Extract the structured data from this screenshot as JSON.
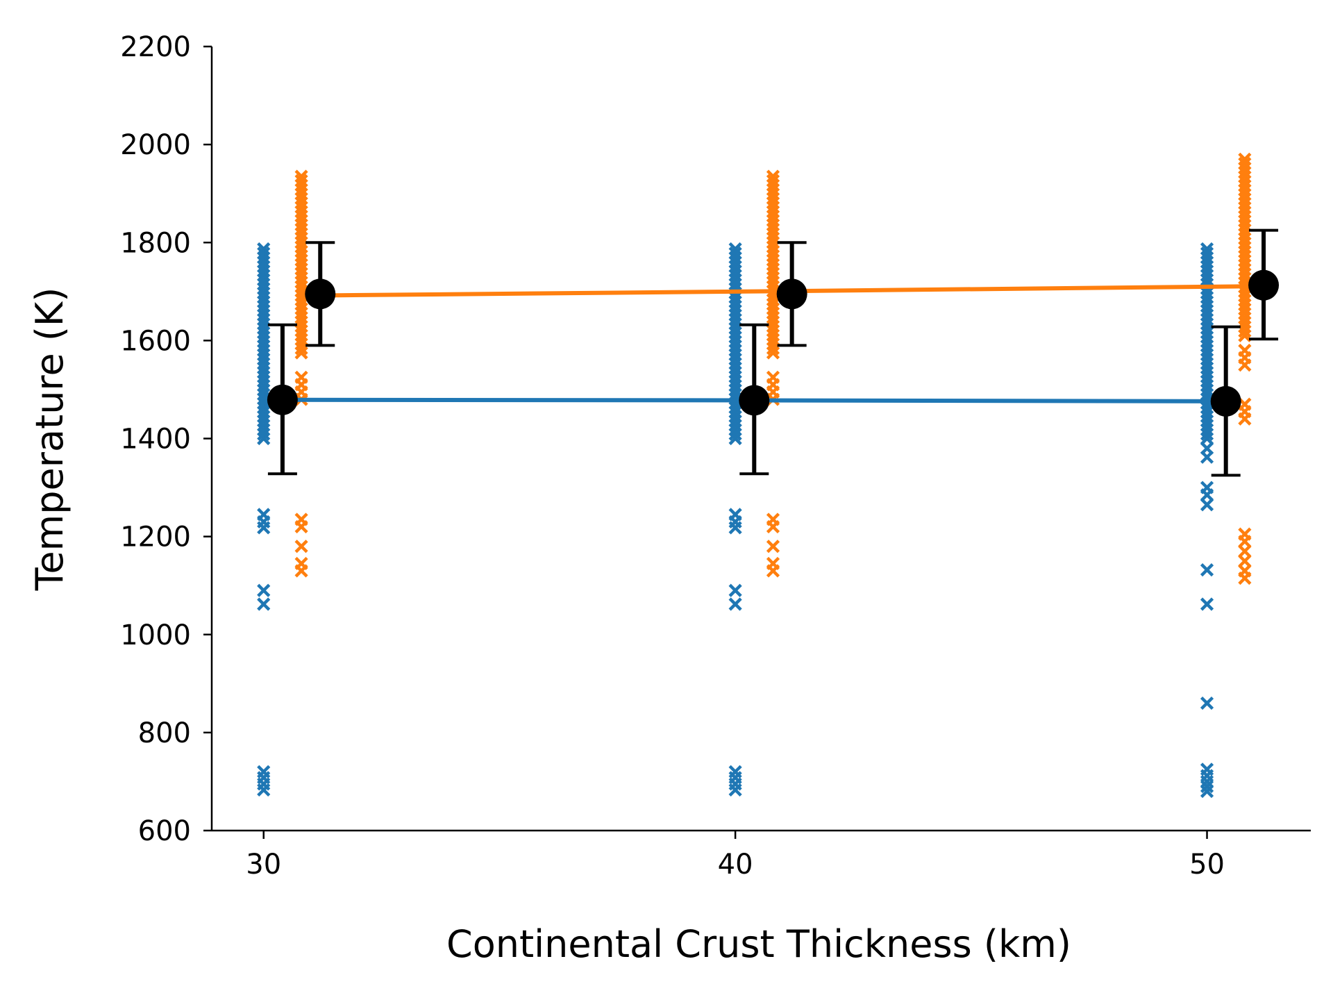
{
  "chart_data": {
    "type": "scatter",
    "title": "",
    "xlabel": "Continental Crust Thickness (km)",
    "ylabel": "Temperature (K)",
    "xlim": [
      28.9,
      52.2
    ],
    "ylim": [
      600,
      2200
    ],
    "x_ticks": [
      "30",
      "40",
      "50"
    ],
    "y_ticks": [
      "600",
      "800",
      "1000",
      "1200",
      "1400",
      "1600",
      "1800",
      "2000",
      "2200"
    ],
    "grid": false,
    "legend": "none",
    "colors": {
      "blue": "#1f77b4",
      "orange": "#ff7f0e",
      "mean": "#000000"
    },
    "series": [
      {
        "color": "#1f77b4",
        "x_offset": 0,
        "mean_x_offset": 0.4,
        "trend": [
          [
            30.4,
            1479
          ],
          [
            40.4,
            1478
          ],
          [
            50.4,
            1476
          ]
        ],
        "groups": [
          {
            "x": 30,
            "mean": 1479,
            "err_low": 1328,
            "err_high": 1632,
            "dense_range": [
              1400,
              1790
            ],
            "outliers": [
              1245,
              1230,
              1218,
              1090,
              1062,
              720,
              708,
              695,
              683
            ]
          },
          {
            "x": 40,
            "mean": 1478,
            "err_low": 1328,
            "err_high": 1632,
            "dense_range": [
              1400,
              1790
            ],
            "outliers": [
              1245,
              1230,
              1218,
              1090,
              1062,
              720,
              708,
              695,
              683
            ]
          },
          {
            "x": 50,
            "mean": 1476,
            "err_low": 1325,
            "err_high": 1628,
            "dense_range": [
              1400,
              1795
            ],
            "outliers": [
              1380,
              1362,
              1300,
              1285,
              1265,
              1132,
              1062,
              860,
              725,
              712,
              700,
              690,
              680
            ]
          }
        ]
      },
      {
        "color": "#ff7f0e",
        "x_offset": 0.8,
        "mean_x_offset": 1.2,
        "trend": [
          [
            31.2,
            1692
          ],
          [
            41.2,
            1701
          ],
          [
            51.2,
            1711
          ]
        ],
        "groups": [
          {
            "x": 30,
            "mean": 1695,
            "err_low": 1590,
            "err_high": 1800,
            "dense_range": [
              1575,
              1940
            ],
            "outliers": [
              1525,
              1510,
              1495,
              1480,
              1235,
              1220,
              1180,
              1145,
              1130
            ]
          },
          {
            "x": 40,
            "mean": 1695,
            "err_low": 1590,
            "err_high": 1800,
            "dense_range": [
              1575,
              1940
            ],
            "outliers": [
              1525,
              1510,
              1495,
              1480,
              1235,
              1220,
              1180,
              1145,
              1130
            ]
          },
          {
            "x": 50,
            "mean": 1713,
            "err_low": 1603,
            "err_high": 1825,
            "dense_range": [
              1610,
              1975
            ],
            "outliers": [
              1580,
              1565,
              1550,
              1470,
              1455,
              1440,
              1205,
              1190,
              1170,
              1150,
              1130,
              1115
            ]
          }
        ]
      }
    ]
  }
}
